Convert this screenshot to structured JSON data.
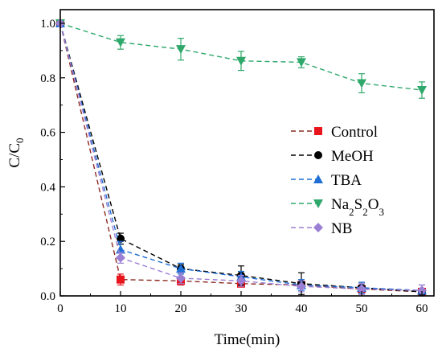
{
  "chart_data": {
    "type": "line",
    "xlabel": "Time(min)",
    "ylabel": "C/C",
    "ylabel_sub": "0",
    "xlim": [
      0,
      62
    ],
    "ylim": [
      0,
      1.05
    ],
    "xticks": [
      "0",
      "10",
      "20",
      "30",
      "40",
      "50",
      "60"
    ],
    "yticks": [
      "0.0",
      "0.2",
      "0.4",
      "0.6",
      "0.8",
      "1.0"
    ],
    "grid": false,
    "legend_position": "right",
    "series": [
      {
        "name": "Control",
        "name_parts": [
          {
            "t": "Control",
            "sub": false
          }
        ],
        "marker": "square",
        "color": "#e8151d",
        "line_color": "#8b2a22",
        "x": [
          0,
          10,
          20,
          30,
          40,
          50,
          60
        ],
        "y": [
          1.0,
          0.06,
          0.055,
          0.045,
          0.04,
          0.025,
          0.015
        ],
        "err": [
          0,
          0.02,
          0.015,
          0.01,
          0.01,
          0.01,
          0.01
        ]
      },
      {
        "name": "MeOH",
        "name_parts": [
          {
            "t": "MeOH",
            "sub": false
          }
        ],
        "marker": "circle",
        "color": "#000000",
        "line_color": "#000000",
        "x": [
          0,
          10,
          20,
          30,
          40,
          50,
          60
        ],
        "y": [
          1.0,
          0.21,
          0.1,
          0.075,
          0.045,
          0.03,
          0.015
        ],
        "err": [
          0,
          0.02,
          0.015,
          0.035,
          0.04,
          0.02,
          0.01
        ]
      },
      {
        "name": "TBA",
        "name_parts": [
          {
            "t": "TBA",
            "sub": false
          }
        ],
        "marker": "triangle-up",
        "color": "#1f6fd6",
        "line_color": "#1f6fd6",
        "x": [
          0,
          10,
          20,
          30,
          40,
          50,
          60
        ],
        "y": [
          1.0,
          0.17,
          0.1,
          0.07,
          0.04,
          0.03,
          0.02
        ],
        "err": [
          0,
          0.03,
          0.02,
          0.02,
          0.02,
          0.02,
          0.02
        ]
      },
      {
        "name": "Na2S2O3",
        "name_parts": [
          {
            "t": "Na",
            "sub": false
          },
          {
            "t": "2",
            "sub": true
          },
          {
            "t": "S",
            "sub": false
          },
          {
            "t": "2",
            "sub": true
          },
          {
            "t": "O",
            "sub": false
          },
          {
            "t": "3",
            "sub": true
          }
        ],
        "marker": "triangle-down",
        "color": "#2ea86b",
        "line_color": "#2ea86b",
        "x": [
          0,
          10,
          20,
          30,
          40,
          50,
          60
        ],
        "y": [
          1.0,
          0.93,
          0.905,
          0.862,
          0.857,
          0.78,
          0.755
        ],
        "err": [
          0,
          0.025,
          0.04,
          0.035,
          0.02,
          0.035,
          0.03
        ]
      },
      {
        "name": "NB",
        "name_parts": [
          {
            "t": "NB",
            "sub": false
          }
        ],
        "marker": "diamond",
        "color": "#9b7fd4",
        "line_color": "#9b7fd4",
        "x": [
          0,
          10,
          20,
          30,
          40,
          50,
          60
        ],
        "y": [
          1.0,
          0.14,
          0.065,
          0.055,
          0.035,
          0.025,
          0.02
        ],
        "err": [
          0,
          0.02,
          0.02,
          0.02,
          0.02,
          0.02,
          0.02
        ]
      }
    ]
  }
}
